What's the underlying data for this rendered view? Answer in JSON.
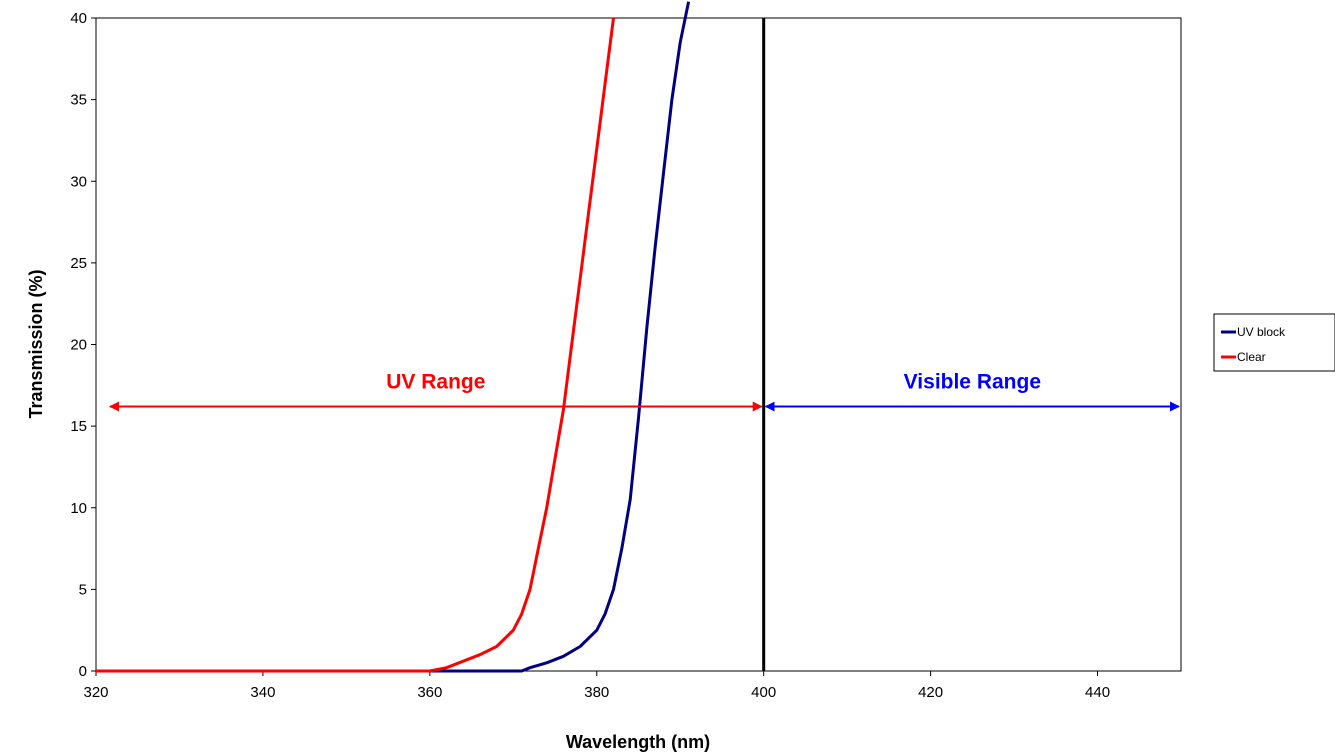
{
  "chart_data": {
    "type": "line",
    "xlabel": "Wavelength (nm)",
    "ylabel": "Transmission (%)",
    "xlim": [
      320,
      450
    ],
    "ylim": [
      0,
      40
    ],
    "xticks": [
      320,
      340,
      360,
      380,
      400,
      420,
      440
    ],
    "yticks": [
      0,
      5,
      10,
      15,
      20,
      25,
      30,
      35,
      40
    ],
    "grid": false,
    "legend_position": "right",
    "series": [
      {
        "name": "UV block",
        "color": "#000080",
        "points": [
          [
            350,
            0
          ],
          [
            360,
            0
          ],
          [
            371,
            0
          ],
          [
            372,
            0.2
          ],
          [
            374,
            0.5
          ],
          [
            376,
            0.9
          ],
          [
            378,
            1.5
          ],
          [
            380,
            2.5
          ],
          [
            381,
            3.5
          ],
          [
            382,
            5
          ],
          [
            383,
            7.5
          ],
          [
            384,
            10.5
          ],
          [
            385,
            15.5
          ],
          [
            386,
            21
          ],
          [
            387,
            26
          ],
          [
            388,
            30.5
          ],
          [
            389,
            35
          ],
          [
            390,
            38.5
          ],
          [
            391,
            41
          ]
        ]
      },
      {
        "name": "Clear",
        "color": "#ff0000",
        "points": [
          [
            320,
            0
          ],
          [
            340,
            0
          ],
          [
            360,
            0
          ],
          [
            362,
            0.2
          ],
          [
            364,
            0.6
          ],
          [
            366,
            1.0
          ],
          [
            368,
            1.5
          ],
          [
            370,
            2.5
          ],
          [
            371,
            3.5
          ],
          [
            372,
            5
          ],
          [
            373,
            7.5
          ],
          [
            374,
            10
          ],
          [
            375,
            13
          ],
          [
            376,
            16
          ],
          [
            377,
            20
          ],
          [
            378,
            24
          ],
          [
            379,
            28
          ],
          [
            380,
            32
          ],
          [
            381,
            36
          ],
          [
            382,
            40
          ]
        ]
      }
    ],
    "reference_line": {
      "x": 400,
      "color": "#000000"
    },
    "annotations": [
      {
        "text": "UV Range",
        "color": "#ff0000",
        "from": 320,
        "to": 400,
        "y": 16.2
      },
      {
        "text": "Visible Range",
        "color": "#0000ff",
        "from": 400,
        "to": 450,
        "y": 16.2
      }
    ]
  }
}
